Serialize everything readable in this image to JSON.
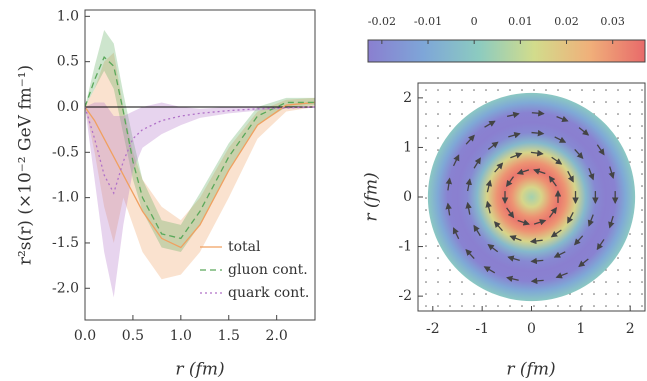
{
  "chart_data": [
    {
      "type": "band-line",
      "xlabel": "r (fm)",
      "ylabel": "r²s(r) (×10⁻² GeV fm⁻¹)",
      "x": [
        0,
        0.1,
        0.2,
        0.3,
        0.4,
        0.5,
        0.6,
        0.8,
        1.0,
        1.2,
        1.5,
        1.8,
        2.1,
        2.4
      ],
      "series": [
        {
          "name": "total",
          "color": "#f0a060",
          "style": "solid",
          "values": [
            0,
            -0.15,
            -0.35,
            -0.55,
            -0.75,
            -0.95,
            -1.15,
            -1.45,
            -1.55,
            -1.3,
            -0.7,
            -0.2,
            0.02,
            0.05
          ],
          "lower": [
            0,
            -0.5,
            -1.1,
            -1.5,
            -1.0,
            -1.3,
            -1.6,
            -1.9,
            -1.85,
            -1.6,
            -1.0,
            -0.35,
            -0.05,
            0
          ],
          "upper": [
            0,
            0.2,
            0.5,
            0.6,
            0.0,
            -0.5,
            -0.8,
            -1.1,
            -1.25,
            -1.0,
            -0.45,
            -0.05,
            0.08,
            0.1
          ]
        },
        {
          "name": "gluon cont.",
          "color": "#5aa85a",
          "style": "dashed",
          "values": [
            0,
            0.3,
            0.55,
            0.45,
            -0.05,
            -0.6,
            -1.0,
            -1.4,
            -1.45,
            -1.15,
            -0.55,
            -0.1,
            0.05,
            0.05
          ],
          "lower": [
            0,
            0.2,
            0.4,
            0.2,
            -0.3,
            -0.8,
            -1.15,
            -1.55,
            -1.6,
            -1.3,
            -0.7,
            -0.2,
            0.0,
            0.02
          ],
          "upper": [
            0,
            0.45,
            0.85,
            0.7,
            0.15,
            -0.35,
            -0.8,
            -1.25,
            -1.3,
            -0.95,
            -0.4,
            0.0,
            0.1,
            0.1
          ]
        },
        {
          "name": "quark cont.",
          "color": "#b070c8",
          "style": "dotted",
          "values": [
            0,
            -0.35,
            -0.75,
            -0.95,
            -0.6,
            -0.35,
            -0.25,
            -0.15,
            -0.1,
            -0.07,
            -0.04,
            -0.02,
            -0.01,
            0
          ],
          "lower": [
            0,
            -0.8,
            -1.6,
            -2.1,
            -1.3,
            -0.7,
            -0.45,
            -0.3,
            -0.2,
            -0.12,
            -0.07,
            -0.04,
            -0.02,
            -0.01
          ],
          "upper": [
            0,
            0.05,
            0.05,
            -0.1,
            -0.1,
            -0.05,
            0.0,
            0.05,
            0.0,
            -0.02,
            0,
            0,
            0,
            0
          ]
        }
      ],
      "xlim": [
        0,
        2.4
      ],
      "xticks": [
        {
          "value": 0,
          "label": "0.0"
        },
        {
          "value": 0.5,
          "label": "0.5"
        },
        {
          "value": 1,
          "label": "1.0"
        },
        {
          "value": 1.5,
          "label": "1.5"
        },
        {
          "value": 2,
          "label": "2.0"
        }
      ],
      "ylim": [
        -2.35,
        1.07
      ],
      "yticks": [
        {
          "value": 1,
          "label": "1.0"
        },
        {
          "value": 0.5,
          "label": "0.5"
        },
        {
          "value": 0,
          "label": "0.0"
        },
        {
          "value": -0.5,
          "label": "-0.5"
        },
        {
          "value": -1,
          "label": "-1.0"
        },
        {
          "value": -1.5,
          "label": "-1.5"
        },
        {
          "value": -2,
          "label": "-2.0"
        }
      ],
      "legend": "lower right"
    },
    {
      "type": "heatmap",
      "xlabel": "r (fm)",
      "ylabel": "r (fm)",
      "xlim": [
        -2.3,
        2.3
      ],
      "xticks": [
        -2,
        -1,
        0,
        1,
        2
      ],
      "ylim": [
        -2.3,
        2.3
      ],
      "yticks": [
        -2,
        -1,
        0,
        1,
        2
      ],
      "profile": {
        "r": [
          0,
          0.2,
          0.4,
          0.55,
          0.7,
          0.9,
          1.1,
          1.3,
          1.5,
          1.7,
          1.9,
          2.1
        ],
        "values": [
          0.005,
          0.015,
          0.03,
          0.035,
          0.03,
          0.015,
          -0.005,
          -0.02,
          -0.027,
          -0.022,
          -0.01,
          0.0
        ]
      },
      "arrows": {
        "r": [
          0.55,
          0.9,
          1.3,
          1.7
        ],
        "direction": [
          1,
          -1,
          -1,
          -1
        ]
      },
      "colorbar": {
        "lim": [
          -0.023,
          0.037
        ],
        "ticks": [
          -0.02,
          -0.01,
          0,
          0.01,
          0.02,
          0.03
        ],
        "colormap": [
          "#8a7fd0",
          "#7ea6d8",
          "#8ccbc0",
          "#d2dc8c",
          "#f0b07a",
          "#e86a6a"
        ]
      }
    }
  ]
}
